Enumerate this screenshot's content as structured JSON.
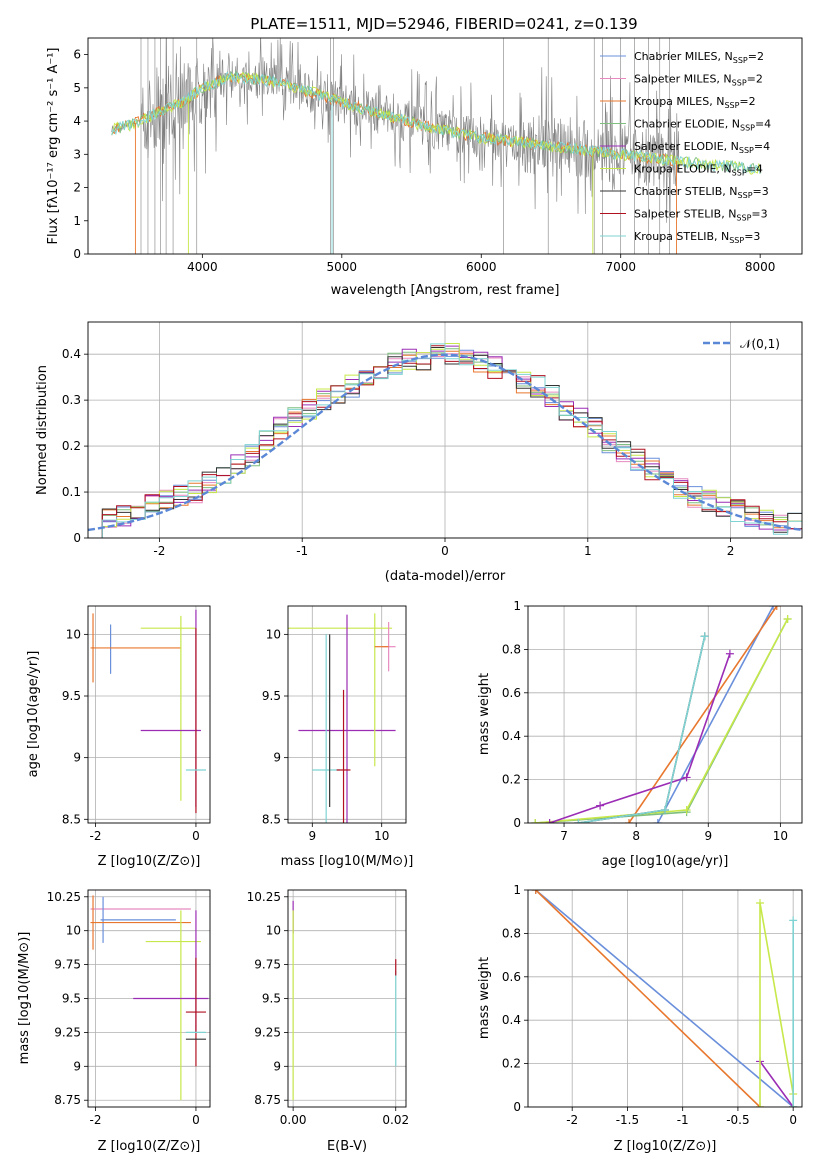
{
  "figure": {
    "title": "PLATE=1511, MJD=52946, FIBERID=0241, z=0.139"
  },
  "colors": {
    "Chabrier MILES": "#6a8fdb",
    "Salpeter MILES": "#e88ac0",
    "Kroupa MILES": "#e8772e",
    "Chabrier ELODIE": "#7fbf7f",
    "Salpeter ELODIE": "#9b2db5",
    "Kroupa ELODIE": "#c7e84a",
    "Chabrier STELIB": "#333333",
    "Salpeter STELIB": "#b01020",
    "Kroupa STELIB": "#7fd3d3",
    "data": "#808080",
    "normal": "#5b88d6"
  },
  "chart_data": [
    {
      "id": "spectrum",
      "type": "line",
      "xlabel": "wavelength [Angstrom, rest frame]",
      "ylabel": "Flux [f_λ 10^-17 erg cm^-2 s^-1 A^-1]",
      "xlim": [
        3180,
        8300
      ],
      "ylim": [
        0,
        6.5
      ],
      "xticks": [
        4000,
        5000,
        6000,
        7000,
        8000
      ],
      "yticks": [
        0,
        1,
        2,
        3,
        4,
        5,
        6
      ],
      "legend_position": "top-right",
      "grid": false,
      "legend": [
        {
          "name": "Chabrier MILES",
          "label": "Chabrier MILES, N",
          "sub": "SSP",
          "tail": "=2"
        },
        {
          "name": "Salpeter MILES",
          "label": "Salpeter MILES, N",
          "sub": "SSP",
          "tail": "=2"
        },
        {
          "name": "Kroupa MILES",
          "label": "Kroupa MILES, N",
          "sub": "SSP",
          "tail": "=2"
        },
        {
          "name": "Chabrier ELODIE",
          "label": "Chabrier ELODIE, N",
          "sub": "SSP",
          "tail": "=4"
        },
        {
          "name": "Salpeter ELODIE",
          "label": "Salpeter ELODIE, N",
          "sub": "SSP",
          "tail": "=4"
        },
        {
          "name": "Kroupa ELODIE",
          "label": "Kroupa ELODIE, N",
          "sub": "SSP",
          "tail": "=4"
        },
        {
          "name": "Chabrier STELIB",
          "label": "Chabrier STELIB, N",
          "sub": "SSP",
          "tail": "=3"
        },
        {
          "name": "Salpeter STELIB",
          "label": "Salpeter STELIB, N",
          "sub": "SSP",
          "tail": "=3"
        },
        {
          "name": "Kroupa STELIB",
          "label": "Kroupa STELIB, N",
          "sub": "SSP",
          "tail": "=3"
        }
      ],
      "continuum": {
        "x": [
          3350,
          3500,
          3700,
          3850,
          4000,
          4200,
          4500,
          4800,
          5200,
          5600,
          6000,
          6300,
          6600,
          7000,
          7300,
          7600,
          8000,
          8300
        ],
        "y": [
          3.75,
          3.9,
          4.3,
          4.55,
          5.0,
          5.35,
          5.2,
          4.85,
          4.3,
          3.85,
          3.5,
          3.35,
          3.2,
          3.0,
          2.85,
          2.7,
          2.55,
          2.45
        ]
      }
    },
    {
      "id": "residuals",
      "type": "histogram",
      "xlabel": "(data-model)/error",
      "ylabel": "Normed distribution",
      "xlim": [
        -2.5,
        2.5
      ],
      "ylim": [
        0,
        0.47
      ],
      "xticks": [
        -2,
        -1,
        0,
        1,
        2
      ],
      "yticks": [
        0.0,
        0.1,
        0.2,
        0.3,
        0.4
      ],
      "grid": true,
      "legend_position": "top-right",
      "normal_label": "𝒩(0,1)",
      "bin_width": 0.1,
      "values_all": [
        0.02,
        0.04,
        0.05,
        0.06,
        0.07,
        0.08,
        0.09,
        0.1,
        0.12,
        0.14,
        0.16,
        0.18,
        0.21,
        0.24,
        0.26,
        0.28,
        0.3,
        0.31,
        0.33,
        0.35,
        0.37,
        0.38,
        0.39,
        0.39,
        0.4,
        0.4,
        0.39,
        0.38,
        0.37,
        0.36,
        0.34,
        0.33,
        0.31,
        0.28,
        0.26,
        0.24,
        0.21,
        0.19,
        0.17,
        0.15,
        0.13,
        0.11,
        0.09,
        0.08,
        0.07,
        0.06,
        0.05,
        0.04,
        0.03,
        0.03
      ]
    },
    {
      "id": "age-vs-Z",
      "type": "errorbar",
      "xlabel": "Z [log10(Z/Z⊙)]",
      "ylabel": "age  [log10(age/yr)]",
      "xlim": [
        -2.15,
        0.28
      ],
      "ylim": [
        8.47,
        10.23
      ],
      "xticks": [
        -2,
        0
      ],
      "yticks": [
        8.5,
        9.0,
        9.5,
        10.0
      ],
      "grid": true,
      "points": [
        {
          "model": "Chabrier MILES",
          "x": -1.7,
          "y": 9.88,
          "xerr": 0.0,
          "yerr": 0.2
        },
        {
          "model": "Kroupa MILES",
          "x": -2.05,
          "y": 9.89,
          "xerr": 0.02,
          "yerr": 0.28
        },
        {
          "model": "Kroupa MILES",
          "x": -1.2,
          "y": 9.89,
          "xerr": 0.9,
          "yerr": 0.0
        },
        {
          "model": "Kroupa ELODIE",
          "x": -0.55,
          "y": 10.05,
          "xerr": 0.55,
          "yerr": 0.0
        },
        {
          "model": "Kroupa ELODIE",
          "x": -0.3,
          "y": 9.4,
          "xerr": 0.0,
          "yerr": 0.75
        },
        {
          "model": "Salpeter ELODIE",
          "x": -0.5,
          "y": 9.22,
          "xerr": 0.6,
          "yerr": 0.0
        },
        {
          "model": "Salpeter ELODIE",
          "x": 0.0,
          "y": 9.4,
          "xerr": 0.0,
          "yerr": 0.8
        },
        {
          "model": "Salpeter STELIB",
          "x": 0.0,
          "y": 9.3,
          "xerr": 0.0,
          "yerr": 0.75
        },
        {
          "model": "Kroupa STELIB",
          "x": 0.0,
          "y": 8.9,
          "xerr": 0.2,
          "yerr": 0.0
        }
      ]
    },
    {
      "id": "age-vs-mass",
      "type": "errorbar",
      "xlabel": "mass [log10(M/M⊙)]",
      "ylabel": "",
      "xlim": [
        8.65,
        10.35
      ],
      "ylim": [
        8.47,
        10.23
      ],
      "xticks": [
        9,
        10
      ],
      "yticks": [
        8.5,
        9.0,
        9.5,
        10.0
      ],
      "grid": true,
      "points": [
        {
          "model": "Kroupa ELODIE",
          "x": 9.4,
          "y": 10.05,
          "xerr": 0.75,
          "yerr": 0.0
        },
        {
          "model": "Salpeter ELODIE",
          "x": 9.5,
          "y": 9.22,
          "xerr": 0.7,
          "yerr": 0.94
        },
        {
          "model": "Kroupa STELIB",
          "x": 9.2,
          "y": 8.9,
          "xerr": 0.2,
          "yerr": 1.1
        },
        {
          "model": "Chabrier STELIB",
          "x": 9.25,
          "y": 9.3,
          "xerr": 0.0,
          "yerr": 0.7
        },
        {
          "model": "Salpeter STELIB",
          "x": 9.45,
          "y": 8.9,
          "xerr": 0.1,
          "yerr": 0.65
        },
        {
          "model": "Kroupa ELODIE",
          "x": 9.9,
          "y": 9.55,
          "xerr": 0.0,
          "yerr": 0.62
        },
        {
          "model": "Salpeter MILES",
          "x": 10.1,
          "y": 9.9,
          "xerr": 0.1,
          "yerr": 0.2
        },
        {
          "model": "Kroupa MILES",
          "x": 10.0,
          "y": 9.9,
          "xerr": 0.1,
          "yerr": 0.0
        }
      ]
    },
    {
      "id": "mass-weight-vs-age",
      "type": "line",
      "xlabel": "age  [log10(age/yr)]",
      "ylabel": "mass weight",
      "xlim": [
        6.5,
        10.3
      ],
      "ylim": [
        0,
        1.0
      ],
      "xticks": [
        7,
        8,
        9,
        10
      ],
      "yticks": [
        0.0,
        0.2,
        0.4,
        0.6,
        0.8,
        1.0
      ],
      "grid": true,
      "series": [
        {
          "name": "Chabrier MILES",
          "x": [
            8.3,
            9.9
          ],
          "y": [
            0.0,
            1.0
          ]
        },
        {
          "name": "Kroupa MILES",
          "x": [
            7.9,
            9.95
          ],
          "y": [
            0.0,
            1.0
          ]
        },
        {
          "name": "Chabrier ELODIE",
          "x": [
            6.6,
            8.7,
            10.1
          ],
          "y": [
            0.0,
            0.05,
            0.94
          ]
        },
        {
          "name": "Kroupa ELODIE",
          "x": [
            6.6,
            8.7,
            10.1
          ],
          "y": [
            0.0,
            0.06,
            0.94
          ]
        },
        {
          "name": "Salpeter ELODIE",
          "x": [
            6.8,
            7.5,
            8.7,
            9.3
          ],
          "y": [
            0.0,
            0.08,
            0.21,
            0.78
          ]
        },
        {
          "name": "Chabrier STELIB",
          "x": [
            7.2,
            8.4,
            8.95
          ],
          "y": [
            0.0,
            0.06,
            0.86
          ]
        },
        {
          "name": "Kroupa STELIB",
          "x": [
            7.2,
            8.4,
            8.95
          ],
          "y": [
            0.0,
            0.06,
            0.86
          ]
        }
      ]
    },
    {
      "id": "mass-vs-Z",
      "type": "errorbar",
      "xlabel": "Z [log10(Z/Z⊙)]",
      "ylabel": "mass [log10(M/M⊙)]",
      "xlim": [
        -2.15,
        0.28
      ],
      "ylim": [
        8.7,
        10.3
      ],
      "xticks": [
        -2,
        0
      ],
      "yticks": [
        8.75,
        9.0,
        9.25,
        9.5,
        9.75,
        10.0,
        10.25
      ],
      "grid": true,
      "points": [
        {
          "model": "Salpeter MILES",
          "x": -1.1,
          "y": 10.16,
          "xerr": 1.0,
          "yerr": 0.0
        },
        {
          "model": "Chabrier MILES",
          "x": -1.15,
          "y": 10.08,
          "xerr": 0.75,
          "yerr": 0.0
        },
        {
          "model": "Chabrier MILES",
          "x": -1.85,
          "y": 10.08,
          "xerr": 0.0,
          "yerr": 0.17
        },
        {
          "model": "Kroupa MILES",
          "x": -1.1,
          "y": 10.06,
          "xerr": 1.0,
          "yerr": 0.0
        },
        {
          "model": "Kroupa MILES",
          "x": -2.05,
          "y": 10.06,
          "xerr": 0.0,
          "yerr": 0.2
        },
        {
          "model": "Kroupa ELODIE",
          "x": -0.45,
          "y": 9.92,
          "xerr": 0.55,
          "yerr": 0.0
        },
        {
          "model": "Kroupa ELODIE",
          "x": -0.3,
          "y": 9.45,
          "xerr": 0.0,
          "yerr": 0.7
        },
        {
          "model": "Salpeter ELODIE",
          "x": -0.5,
          "y": 9.5,
          "xerr": 0.75,
          "yerr": 0.0
        },
        {
          "model": "Salpeter ELODIE",
          "x": 0.0,
          "y": 9.7,
          "xerr": 0.0,
          "yerr": 0.45
        },
        {
          "model": "Salpeter STELIB",
          "x": 0.0,
          "y": 9.4,
          "xerr": 0.2,
          "yerr": 0.4
        },
        {
          "model": "Chabrier STELIB",
          "x": 0.0,
          "y": 9.2,
          "xerr": 0.2,
          "yerr": 0.0
        },
        {
          "model": "Kroupa STELIB",
          "x": 0.0,
          "y": 9.25,
          "xerr": 0.2,
          "yerr": 0.0
        }
      ]
    },
    {
      "id": "mass-vs-EBV",
      "type": "errorbar",
      "xlabel": "E(B-V)",
      "ylabel": "",
      "xlim": [
        -0.001,
        0.022
      ],
      "ylim": [
        8.7,
        10.3
      ],
      "xticks": [
        0.0,
        0.02
      ],
      "xticklabels": [
        "0.00",
        "0.02"
      ],
      "yticks": [
        8.75,
        9.0,
        9.25,
        9.5,
        9.75,
        10.0,
        10.25
      ],
      "grid": true,
      "points": [
        {
          "model": "Salpeter ELODIE",
          "x": 0.0,
          "y": 10.1,
          "xerr": 0.0,
          "yerr": 0.12
        },
        {
          "model": "Kroupa ELODIE",
          "x": 0.0,
          "y": 9.45,
          "xerr": 0.0,
          "yerr": 0.7
        },
        {
          "model": "Kroupa STELIB",
          "x": 0.02,
          "y": 9.35,
          "xerr": 0.0,
          "yerr": 0.35
        },
        {
          "model": "Salpeter STELIB",
          "x": 0.02,
          "y": 9.73,
          "xerr": 0.0,
          "yerr": 0.06
        }
      ]
    },
    {
      "id": "mass-weight-vs-Z",
      "type": "line",
      "xlabel": "Z [log10(Z/Z⊙)]",
      "ylabel": "mass weight",
      "xlim": [
        -2.4,
        0.08
      ],
      "ylim": [
        0,
        1.0
      ],
      "xticks": [
        -2.0,
        -1.5,
        -1.0,
        -0.5,
        0.0
      ],
      "yticks": [
        0.0,
        0.2,
        0.4,
        0.6,
        0.8,
        1.0
      ],
      "grid": true,
      "series": [
        {
          "name": "Chabrier MILES",
          "x": [
            -2.33,
            0.0
          ],
          "y": [
            1.0,
            0.0
          ]
        },
        {
          "name": "Kroupa MILES",
          "x": [
            -2.33,
            -0.3
          ],
          "y": [
            1.0,
            0.0
          ]
        },
        {
          "name": "Salpeter ELODIE",
          "x": [
            -0.3,
            0.0
          ],
          "y": [
            0.21,
            0.0
          ]
        },
        {
          "name": "Kroupa ELODIE",
          "x": [
            -0.3,
            -0.3,
            0.0,
            0.0
          ],
          "y": [
            0.0,
            0.94,
            0.06,
            0.0
          ]
        },
        {
          "name": "Kroupa STELIB",
          "x": [
            0.0,
            0.0
          ],
          "y": [
            0.0,
            0.86
          ]
        }
      ]
    }
  ]
}
